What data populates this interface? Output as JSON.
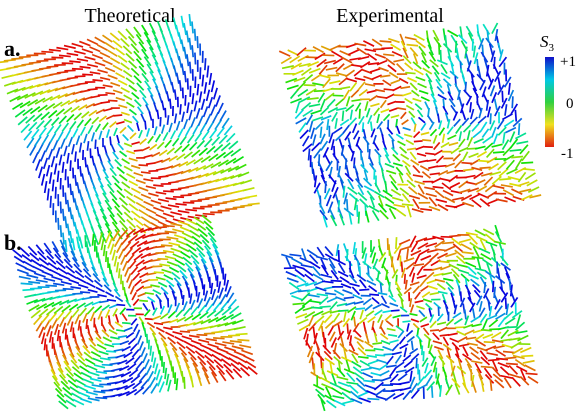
{
  "columns": {
    "left": "Theoretical",
    "right": "Experimental"
  },
  "rows": [
    {
      "label": "a."
    },
    {
      "label": "b."
    }
  ],
  "colorbar": {
    "symbol": "S",
    "subscript": "3",
    "ticks": [
      "+1",
      "0",
      "-1"
    ]
  }
}
